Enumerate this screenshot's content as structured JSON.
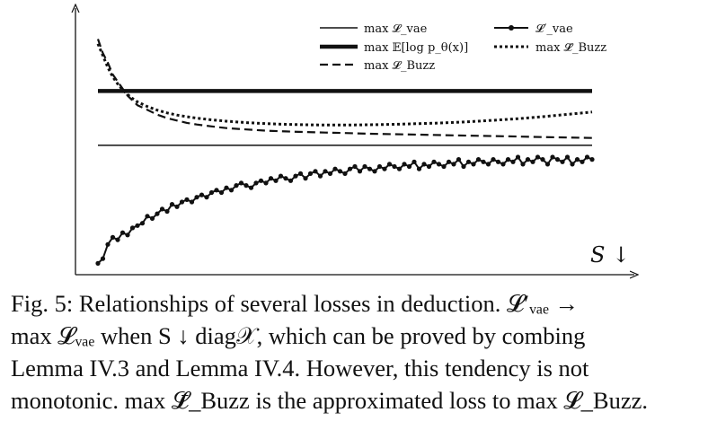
{
  "chart_data": {
    "type": "line",
    "title": "",
    "xlabel": "S ↓",
    "ylabel": "",
    "xlim": [
      0,
      100
    ],
    "ylim": [
      0,
      100
    ],
    "grid": false,
    "legend_position": "top-right",
    "legend": [
      {
        "key": "l_vae",
        "label": "max 𝓛_vae",
        "style": "thin-solid"
      },
      {
        "key": "l_elbo",
        "label": "max 𝔼[log p_θ(x)]",
        "style": "thick-solid"
      },
      {
        "key": "l_buzz",
        "label": "max 𝓛_Buzz",
        "style": "dashed"
      },
      {
        "key": "l_vae_prime",
        "label": "𝓛′_vae",
        "style": "solid-dots"
      },
      {
        "key": "l_buzz_bar",
        "label": "max 𝓛̄_Buzz",
        "style": "dotted"
      }
    ],
    "series": [
      {
        "name": "max 𝓛_vae",
        "key": "l_vae",
        "x": [
          0,
          100
        ],
        "y": [
          51,
          51
        ]
      },
      {
        "name": "max 𝔼[log p_θ(x)]",
        "key": "l_elbo",
        "x": [
          0,
          100
        ],
        "y": [
          74,
          74
        ]
      },
      {
        "name": "max 𝓛_Buzz",
        "key": "l_buzz",
        "x": [
          0,
          1,
          2,
          3,
          4,
          5,
          6,
          7,
          8,
          10,
          12,
          14,
          16,
          18,
          20,
          23,
          26,
          30,
          34,
          38,
          42,
          46,
          50,
          55,
          60,
          65,
          70,
          75,
          80,
          85,
          90,
          95,
          100
        ],
        "y": [
          96,
          90,
          86,
          81,
          78,
          75,
          72,
          70,
          68,
          66,
          64,
          62.5,
          61.5,
          60.5,
          59.8,
          59,
          58.3,
          57.7,
          57.2,
          56.9,
          56.6,
          56.4,
          56.2,
          55.9,
          55.7,
          55.5,
          55.3,
          55.1,
          54.9,
          54.7,
          54.5,
          54.3,
          54.1
        ]
      },
      {
        "name": "max 𝓛̄_Buzz",
        "key": "l_buzz_bar",
        "x": [
          0,
          1,
          2,
          3,
          4,
          5,
          6,
          7,
          8,
          10,
          12,
          14,
          16,
          18,
          20,
          23,
          26,
          30,
          34,
          38,
          42,
          46,
          50,
          55,
          60,
          65,
          70,
          75,
          80,
          85,
          90,
          95,
          100
        ],
        "y": [
          94,
          89,
          84,
          80,
          77,
          74.5,
          72.5,
          70.8,
          69.4,
          67.4,
          65.9,
          64.7,
          63.8,
          63.1,
          62.5,
          61.8,
          61.2,
          60.6,
          60.2,
          59.9,
          59.7,
          59.6,
          59.6,
          59.7,
          59.9,
          60.2,
          60.5,
          61,
          61.6,
          62.3,
          63.1,
          64.1,
          65.1
        ]
      },
      {
        "name": "𝓛′_vae",
        "key": "l_vae_prime",
        "x": [
          0,
          1,
          2,
          3,
          4,
          5,
          6,
          7,
          8,
          9,
          10,
          11,
          12,
          13,
          14,
          15,
          16,
          17,
          18,
          19,
          20,
          21,
          22,
          23,
          24,
          25,
          26,
          27,
          28,
          29,
          30,
          31,
          32,
          33,
          34,
          35,
          36,
          37,
          38,
          39,
          40,
          41,
          42,
          43,
          44,
          45,
          46,
          47,
          48,
          49,
          50,
          51,
          52,
          53,
          54,
          55,
          56,
          57,
          58,
          59,
          60,
          61,
          62,
          63,
          64,
          65,
          66,
          67,
          68,
          69,
          70,
          71,
          72,
          73,
          74,
          75,
          76,
          77,
          78,
          79,
          80,
          81,
          82,
          83,
          84,
          85,
          86,
          87,
          88,
          89,
          90,
          91,
          92,
          93,
          94,
          95,
          96,
          97,
          98,
          99,
          100
        ],
        "y": [
          1,
          3,
          9,
          12,
          11,
          14,
          13,
          16,
          17,
          18,
          21,
          20,
          22,
          24,
          23,
          26,
          25,
          27,
          28,
          27,
          29,
          30,
          29,
          31,
          32,
          31,
          33,
          32,
          34,
          35,
          34,
          33,
          35,
          36,
          35,
          37,
          36,
          38,
          37,
          36,
          38,
          39,
          37,
          39,
          40,
          38,
          40,
          39,
          41,
          40,
          39,
          41,
          42,
          40,
          42,
          41,
          40,
          42,
          41,
          43,
          42,
          41,
          43,
          42,
          44,
          41,
          43,
          42,
          44,
          43,
          42,
          44,
          43,
          45,
          42,
          44,
          43,
          45,
          44,
          43,
          45,
          44,
          43,
          45,
          44,
          46,
          43,
          45,
          44,
          46,
          45,
          43,
          46,
          45,
          44,
          46,
          43,
          45,
          44,
          46,
          45
        ]
      }
    ]
  },
  "caption": {
    "line1": "Fig. 5: Relationships of several losses in deduction. 𝓛′ᵥₐₑ →",
    "line2": "max 𝓛ᵥₐₑ when S ↓ diag𝒳, which can be proved by combing",
    "line3": "Lemma IV.3 and Lemma IV.4. However, this tendency is not",
    "line4": "monotonic. max 𝓛̄_Buzz is the approximated loss to max 𝓛_Buzz."
  }
}
